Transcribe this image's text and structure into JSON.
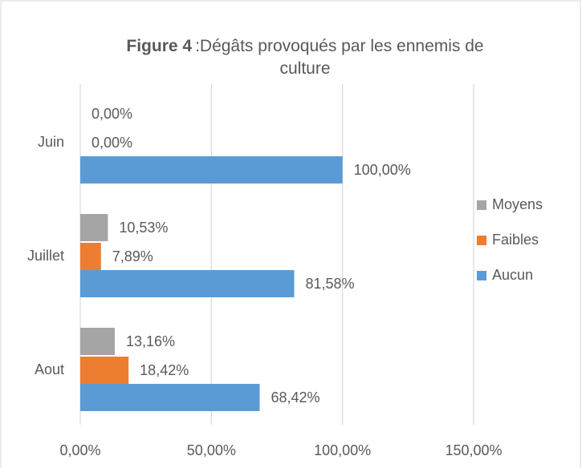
{
  "chart_data": {
    "type": "bar",
    "orientation": "horizontal",
    "title_prefix": "Figure 4",
    "title": ":Dégâts provoqués par les ennemis de culture",
    "categories": [
      "Juin",
      "Juillet",
      "Aout"
    ],
    "series": [
      {
        "name": "Aucun",
        "color": "#5b9bd5",
        "values": [
          100,
          81.58,
          68.42
        ],
        "value_labels": [
          "100,00%",
          "81,58%",
          "68,42%"
        ]
      },
      {
        "name": "Faibles",
        "color": "#ed7d31",
        "values": [
          0,
          7.89,
          18.42
        ],
        "value_labels": [
          "0,00%",
          "7,89%",
          "18,42%"
        ]
      },
      {
        "name": "Moyens",
        "color": "#a5a5a5",
        "values": [
          0,
          10.53,
          13.16
        ],
        "value_labels": [
          "0,00%",
          "10,53%",
          "13,16%"
        ]
      }
    ],
    "xlim": [
      0,
      150
    ],
    "xticks": [
      {
        "value": 0,
        "label": "0,00%"
      },
      {
        "value": 50,
        "label": "50,00%"
      },
      {
        "value": 100,
        "label": "100,00%"
      },
      {
        "value": 150,
        "label": "150,00%"
      }
    ],
    "grid": true,
    "legend": "right"
  }
}
